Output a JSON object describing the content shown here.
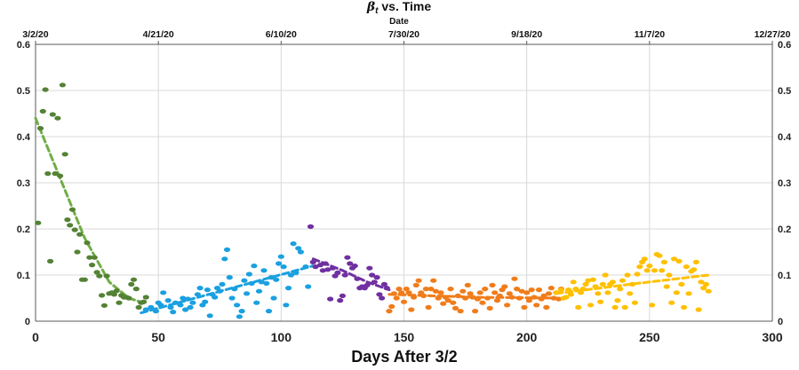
{
  "chart_data": {
    "type": "scatter",
    "title": "β_t vs. Time",
    "title_symbol": "β",
    "title_subscript": "t",
    "title_rest": " vs. Time",
    "top_axis_label": "Date",
    "xlabel": "Days After 3/2",
    "ylabel": "",
    "xlim": [
      0,
      300
    ],
    "ylim": [
      0,
      0.6
    ],
    "x_ticks": [
      "0",
      "50",
      "100",
      "150",
      "200",
      "250",
      "300"
    ],
    "y_ticks": [
      "0",
      "0.1",
      "0.2",
      "0.3",
      "0.4",
      "0.5",
      "0.6"
    ],
    "top_ticks": [
      "3/2/20",
      "4/21/20",
      "6/10/20",
      "7/30/20",
      "9/18/20",
      "11/7/20",
      "12/27/20"
    ],
    "grid": true,
    "colors": {
      "series1": "#548235",
      "series1_trend": "#70ad47",
      "series2": "#1aa0e0",
      "series3": "#7030a0",
      "series4": "#f07c1a",
      "series5": "#ffc000",
      "grid": "#d9d9d9",
      "axis": "#595959"
    },
    "series": [
      {
        "color_key": "series1",
        "points": [
          [
            1,
            0.213
          ],
          [
            2,
            0.418
          ],
          [
            3,
            0.455
          ],
          [
            4,
            0.502
          ],
          [
            5,
            0.32
          ],
          [
            6,
            0.13
          ],
          [
            7,
            0.448
          ],
          [
            8,
            0.32
          ],
          [
            9,
            0.44
          ],
          [
            10,
            0.315
          ],
          [
            11,
            0.512
          ],
          [
            12,
            0.362
          ],
          [
            13,
            0.22
          ],
          [
            14,
            0.208
          ],
          [
            15,
            0.242
          ],
          [
            16,
            0.198
          ],
          [
            17,
            0.15
          ],
          [
            18,
            0.188
          ],
          [
            19,
            0.09
          ],
          [
            20,
            0.09
          ],
          [
            21,
            0.17
          ],
          [
            22,
            0.138
          ],
          [
            23,
            0.122
          ],
          [
            24,
            0.138
          ],
          [
            25,
            0.106
          ],
          [
            26,
            0.098
          ],
          [
            27,
            0.056
          ],
          [
            28,
            0.034
          ],
          [
            29,
            0.098
          ],
          [
            30,
            0.06
          ],
          [
            31,
            0.062
          ],
          [
            32,
            0.058
          ],
          [
            33,
            0.066
          ],
          [
            34,
            0.04
          ],
          [
            35,
            0.056
          ],
          [
            36,
            0.052
          ],
          [
            37,
            0.052
          ],
          [
            38,
            0.05
          ],
          [
            39,
            0.08
          ],
          [
            40,
            0.09
          ],
          [
            41,
            0.07
          ],
          [
            42,
            0.03
          ],
          [
            43,
            0.04
          ],
          [
            44,
            0.042
          ],
          [
            45,
            0.052
          ]
        ],
        "trend": [
          [
            0,
            0.44
          ],
          [
            10,
            0.31
          ],
          [
            20,
            0.18
          ],
          [
            30,
            0.085
          ],
          [
            38,
            0.05
          ],
          [
            45,
            0.038
          ]
        ]
      },
      {
        "color_key": "series2",
        "points": [
          [
            45,
            0.025
          ],
          [
            47,
            0.03
          ],
          [
            49,
            0.022
          ],
          [
            50,
            0.04
          ],
          [
            51,
            0.035
          ],
          [
            52,
            0.062
          ],
          [
            54,
            0.045
          ],
          [
            55,
            0.03
          ],
          [
            56,
            0.02
          ],
          [
            57,
            0.04
          ],
          [
            59,
            0.035
          ],
          [
            60,
            0.05
          ],
          [
            61,
            0.025
          ],
          [
            62,
            0.048
          ],
          [
            63,
            0.03
          ],
          [
            64,
            0.04
          ],
          [
            66,
            0.058
          ],
          [
            67,
            0.072
          ],
          [
            68,
            0.035
          ],
          [
            69,
            0.042
          ],
          [
            70,
            0.068
          ],
          [
            71,
            0.012
          ],
          [
            72,
            0.058
          ],
          [
            73,
            0.052
          ],
          [
            74,
            0.072
          ],
          [
            75,
            0.065
          ],
          [
            76,
            0.08
          ],
          [
            77,
            0.135
          ],
          [
            78,
            0.155
          ],
          [
            79,
            0.095
          ],
          [
            80,
            0.05
          ],
          [
            81,
            0.07
          ],
          [
            82,
            0.035
          ],
          [
            83,
            0.01
          ],
          [
            84,
            0.022
          ],
          [
            85,
            0.088
          ],
          [
            86,
            0.06
          ],
          [
            87,
            0.102
          ],
          [
            88,
            0.082
          ],
          [
            89,
            0.12
          ],
          [
            90,
            0.04
          ],
          [
            91,
            0.065
          ],
          [
            92,
            0.085
          ],
          [
            93,
            0.11
          ],
          [
            94,
            0.082
          ],
          [
            95,
            0.022
          ],
          [
            96,
            0.095
          ],
          [
            97,
            0.05
          ],
          [
            98,
            0.09
          ],
          [
            99,
            0.125
          ],
          [
            100,
            0.14
          ],
          [
            101,
            0.118
          ],
          [
            102,
            0.035
          ],
          [
            103,
            0.072
          ],
          [
            104,
            0.1
          ],
          [
            105,
            0.168
          ],
          [
            106,
            0.105
          ],
          [
            107,
            0.158
          ],
          [
            108,
            0.15
          ],
          [
            110,
            0.118
          ],
          [
            111,
            0.075
          ]
        ],
        "trend": [
          [
            43,
            0.018
          ],
          [
            113,
            0.12
          ]
        ]
      },
      {
        "color_key": "series3",
        "points": [
          [
            112,
            0.205
          ],
          [
            113,
            0.128
          ],
          [
            114,
            0.118
          ],
          [
            116,
            0.122
          ],
          [
            117,
            0.11
          ],
          [
            118,
            0.125
          ],
          [
            119,
            0.112
          ],
          [
            120,
            0.048
          ],
          [
            121,
            0.115
          ],
          [
            122,
            0.098
          ],
          [
            123,
            0.105
          ],
          [
            124,
            0.045
          ],
          [
            125,
            0.055
          ],
          [
            126,
            0.1
          ],
          [
            127,
            0.138
          ],
          [
            128,
            0.125
          ],
          [
            129,
            0.115
          ],
          [
            130,
            0.12
          ],
          [
            131,
            0.092
          ],
          [
            132,
            0.072
          ],
          [
            133,
            0.075
          ],
          [
            134,
            0.072
          ],
          [
            135,
            0.078
          ],
          [
            136,
            0.115
          ],
          [
            137,
            0.1
          ],
          [
            138,
            0.085
          ],
          [
            139,
            0.095
          ],
          [
            140,
            0.058
          ],
          [
            141,
            0.05
          ],
          [
            142,
            0.08
          ],
          [
            143,
            0.072
          ]
        ],
        "trend": [
          [
            113,
            0.135
          ],
          [
            125,
            0.11
          ],
          [
            135,
            0.085
          ],
          [
            144,
            0.068
          ]
        ]
      },
      {
        "color_key": "series4",
        "points": [
          [
            144,
            0.022
          ],
          [
            145,
            0.032
          ],
          [
            146,
            0.06
          ],
          [
            147,
            0.05
          ],
          [
            148,
            0.07
          ],
          [
            149,
            0.062
          ],
          [
            150,
            0.042
          ],
          [
            151,
            0.07
          ],
          [
            152,
            0.062
          ],
          [
            153,
            0.025
          ],
          [
            154,
            0.052
          ],
          [
            155,
            0.078
          ],
          [
            156,
            0.088
          ],
          [
            157,
            0.062
          ],
          [
            158,
            0.055
          ],
          [
            159,
            0.07
          ],
          [
            160,
            0.03
          ],
          [
            161,
            0.07
          ],
          [
            162,
            0.088
          ],
          [
            163,
            0.065
          ],
          [
            164,
            0.05
          ],
          [
            165,
            0.062
          ],
          [
            166,
            0.038
          ],
          [
            167,
            0.052
          ],
          [
            168,
            0.045
          ],
          [
            169,
            0.07
          ],
          [
            170,
            0.04
          ],
          [
            171,
            0.028
          ],
          [
            172,
            0.055
          ],
          [
            173,
            0.022
          ],
          [
            174,
            0.065
          ],
          [
            175,
            0.05
          ],
          [
            176,
            0.078
          ],
          [
            177,
            0.06
          ],
          [
            178,
            0.052
          ],
          [
            179,
            0.022
          ],
          [
            180,
            0.048
          ],
          [
            181,
            0.062
          ],
          [
            182,
            0.04
          ],
          [
            183,
            0.07
          ],
          [
            184,
            0.05
          ],
          [
            185,
            0.028
          ],
          [
            186,
            0.078
          ],
          [
            187,
            0.062
          ],
          [
            188,
            0.045
          ],
          [
            189,
            0.055
          ],
          [
            190,
            0.068
          ],
          [
            191,
            0.075
          ],
          [
            192,
            0.035
          ],
          [
            193,
            0.06
          ],
          [
            194,
            0.052
          ],
          [
            195,
            0.092
          ],
          [
            196,
            0.07
          ],
          [
            197,
            0.05
          ],
          [
            198,
            0.065
          ],
          [
            199,
            0.03
          ],
          [
            200,
            0.062
          ],
          [
            201,
            0.045
          ],
          [
            202,
            0.068
          ],
          [
            203,
            0.052
          ],
          [
            204,
            0.035
          ],
          [
            205,
            0.068
          ],
          [
            206,
            0.048
          ],
          [
            207,
            0.055
          ],
          [
            208,
            0.03
          ],
          [
            209,
            0.06
          ],
          [
            210,
            0.072
          ],
          [
            211,
            0.05
          ],
          [
            212,
            0.062
          ],
          [
            213,
            0.048
          ],
          [
            214,
            0.07
          ]
        ],
        "trend": [
          [
            144,
            0.058
          ],
          [
            180,
            0.052
          ],
          [
            213,
            0.05
          ]
        ]
      },
      {
        "color_key": "series5",
        "points": [
          [
            212,
            0.062
          ],
          [
            214,
            0.068
          ],
          [
            215,
            0.05
          ],
          [
            216,
            0.052
          ],
          [
            217,
            0.068
          ],
          [
            218,
            0.058
          ],
          [
            219,
            0.085
          ],
          [
            220,
            0.07
          ],
          [
            221,
            0.03
          ],
          [
            222,
            0.062
          ],
          [
            223,
            0.07
          ],
          [
            224,
            0.08
          ],
          [
            225,
            0.088
          ],
          [
            226,
            0.035
          ],
          [
            227,
            0.09
          ],
          [
            228,
            0.075
          ],
          [
            229,
            0.06
          ],
          [
            230,
            0.042
          ],
          [
            231,
            0.08
          ],
          [
            232,
            0.1
          ],
          [
            233,
            0.062
          ],
          [
            234,
            0.08
          ],
          [
            235,
            0.085
          ],
          [
            236,
            0.03
          ],
          [
            237,
            0.045
          ],
          [
            238,
            0.07
          ],
          [
            239,
            0.088
          ],
          [
            240,
            0.03
          ],
          [
            241,
            0.1
          ],
          [
            242,
            0.06
          ],
          [
            243,
            0.08
          ],
          [
            244,
            0.04
          ],
          [
            245,
            0.102
          ],
          [
            246,
            0.118
          ],
          [
            247,
            0.128
          ],
          [
            248,
            0.135
          ],
          [
            249,
            0.11
          ],
          [
            250,
            0.12
          ],
          [
            251,
            0.035
          ],
          [
            252,
            0.11
          ],
          [
            253,
            0.145
          ],
          [
            254,
            0.142
          ],
          [
            255,
            0.11
          ],
          [
            256,
            0.128
          ],
          [
            257,
            0.075
          ],
          [
            258,
            0.1
          ],
          [
            259,
            0.04
          ],
          [
            260,
            0.135
          ],
          [
            261,
            0.062
          ],
          [
            262,
            0.13
          ],
          [
            263,
            0.08
          ],
          [
            264,
            0.03
          ],
          [
            265,
            0.118
          ],
          [
            266,
            0.06
          ],
          [
            267,
            0.108
          ],
          [
            268,
            0.112
          ],
          [
            269,
            0.128
          ],
          [
            270,
            0.025
          ],
          [
            271,
            0.085
          ],
          [
            272,
            0.072
          ],
          [
            273,
            0.08
          ],
          [
            274,
            0.065
          ]
        ],
        "trend": [
          [
            212,
            0.06
          ],
          [
            245,
            0.082
          ],
          [
            274,
            0.1
          ]
        ]
      }
    ]
  }
}
